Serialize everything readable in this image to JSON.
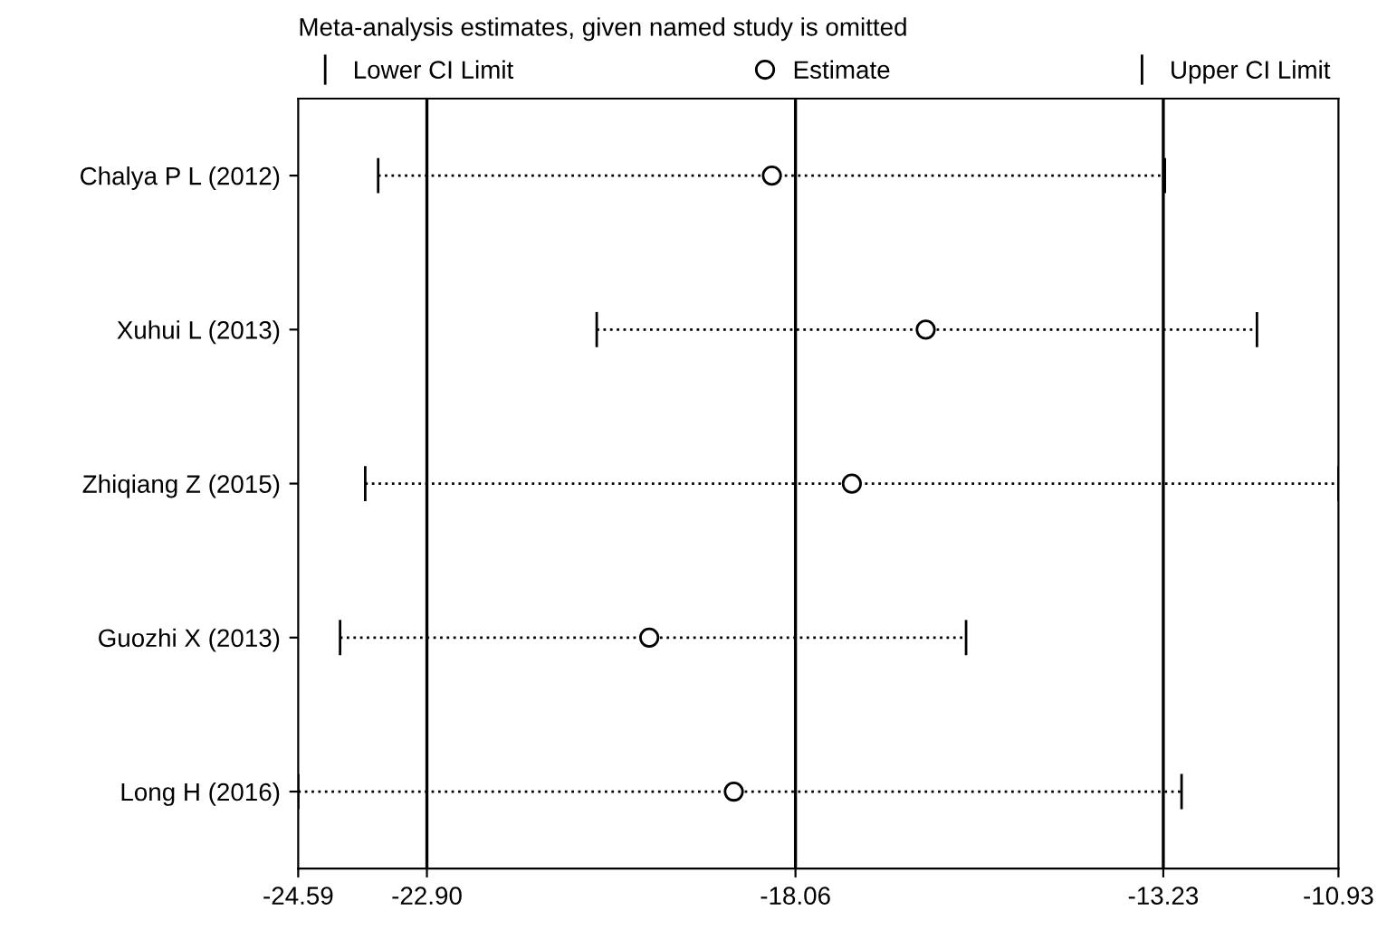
{
  "chart_data": {
    "type": "scatter",
    "orientation": "horizontal",
    "title": "Meta-analysis estimates, given named study is omitted",
    "categories": [
      "Chalya P L (2012)",
      "Xuhui L (2013)",
      "Zhiqiang Z (2015)",
      "Guozhi X (2013)",
      "Long H (2016)"
    ],
    "series": [
      {
        "name": "Estimate",
        "color": "#000000",
        "values": [
          -18.37,
          -16.35,
          -17.32,
          -19.98,
          -18.87
        ],
        "errors": [
          [
            -23.54,
            -13.21
          ],
          [
            -20.67,
            -12.0
          ],
          [
            -23.71,
            -10.93
          ],
          [
            -24.04,
            -15.82
          ],
          [
            -24.59,
            -12.99
          ]
        ]
      }
    ],
    "annotations": [
      "Lower CI Limit",
      "Upper CI Limit"
    ],
    "marker": "circle",
    "line_style": "dotted",
    "xlim": [
      -24.59,
      -10.93
    ],
    "xticks": [
      -24.59,
      {
        "value": -22.9,
        "label": "-22.90"
      },
      -18.06,
      -13.23,
      -10.93
    ],
    "ref_lines": [
      {
        "axis": "x",
        "value": -22.9
      },
      {
        "axis": "x",
        "value": -18.06
      },
      {
        "axis": "x",
        "value": -13.23
      }
    ],
    "legend": "top"
  }
}
